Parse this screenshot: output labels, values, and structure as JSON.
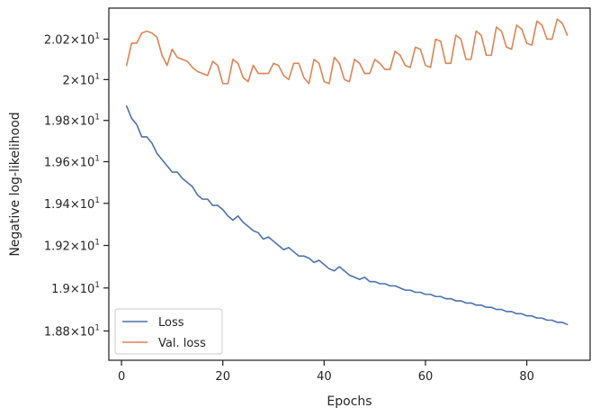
{
  "chart_data": {
    "type": "line",
    "xlabel": "Epochs",
    "ylabel": "Negative log-likelihood",
    "xlim": [
      -2.5,
      92.5
    ],
    "ylim": [
      18.665,
      20.355
    ],
    "yscale": "log",
    "grid": false,
    "legend_position": "lower-left",
    "x_ticks": [
      {
        "value": 0,
        "label": "0"
      },
      {
        "value": 20,
        "label": "20"
      },
      {
        "value": 40,
        "label": "40"
      },
      {
        "value": 60,
        "label": "60"
      },
      {
        "value": 80,
        "label": "80"
      }
    ],
    "y_ticks": [
      {
        "value": 18.8,
        "base": "1.88",
        "exp": "1"
      },
      {
        "value": 19.0,
        "base": "1.9",
        "exp": "1"
      },
      {
        "value": 19.2,
        "base": "1.92",
        "exp": "1"
      },
      {
        "value": 19.4,
        "base": "1.94",
        "exp": "1"
      },
      {
        "value": 19.6,
        "base": "1.96",
        "exp": "1"
      },
      {
        "value": 19.8,
        "base": "1.98",
        "exp": "1"
      },
      {
        "value": 20.0,
        "base": "2",
        "exp": "1"
      },
      {
        "value": 20.2,
        "base": "2.02",
        "exp": "1"
      }
    ],
    "x": [
      1,
      2,
      3,
      4,
      5,
      6,
      7,
      8,
      9,
      10,
      11,
      12,
      13,
      14,
      15,
      16,
      17,
      18,
      19,
      20,
      21,
      22,
      23,
      24,
      25,
      26,
      27,
      28,
      29,
      30,
      31,
      32,
      33,
      34,
      35,
      36,
      37,
      38,
      39,
      40,
      41,
      42,
      43,
      44,
      45,
      46,
      47,
      48,
      49,
      50,
      51,
      52,
      53,
      54,
      55,
      56,
      57,
      58,
      59,
      60,
      61,
      62,
      63,
      64,
      65,
      66,
      67,
      68,
      69,
      70,
      71,
      72,
      73,
      74,
      75,
      76,
      77,
      78,
      79,
      80,
      81,
      82,
      83,
      84,
      85,
      86,
      87,
      88
    ],
    "series": [
      {
        "name": "Loss",
        "color": "#4c72b0",
        "values": [
          19.87,
          19.81,
          19.78,
          19.72,
          19.72,
          19.69,
          19.64,
          19.61,
          19.58,
          19.55,
          19.55,
          19.52,
          19.5,
          19.48,
          19.44,
          19.42,
          19.42,
          19.39,
          19.39,
          19.37,
          19.34,
          19.32,
          19.34,
          19.31,
          19.29,
          19.27,
          19.26,
          19.23,
          19.24,
          19.22,
          19.2,
          19.18,
          19.19,
          19.17,
          19.15,
          19.15,
          19.14,
          19.12,
          19.13,
          19.11,
          19.09,
          19.08,
          19.1,
          19.08,
          19.06,
          19.05,
          19.04,
          19.05,
          19.03,
          19.03,
          19.02,
          19.02,
          19.01,
          19.01,
          19.0,
          18.99,
          18.99,
          18.98,
          18.98,
          18.97,
          18.97,
          18.96,
          18.96,
          18.95,
          18.95,
          18.94,
          18.94,
          18.93,
          18.93,
          18.92,
          18.92,
          18.91,
          18.91,
          18.9,
          18.9,
          18.89,
          18.89,
          18.88,
          18.88,
          18.87,
          18.87,
          18.86,
          18.86,
          18.85,
          18.85,
          18.84,
          18.84,
          18.83
        ]
      },
      {
        "name": "Val. loss",
        "color": "#dd8452",
        "values": [
          20.07,
          20.18,
          20.18,
          20.23,
          20.24,
          20.23,
          20.21,
          20.12,
          20.07,
          20.15,
          20.11,
          20.1,
          20.09,
          20.06,
          20.04,
          20.03,
          20.02,
          20.09,
          20.07,
          19.98,
          19.98,
          20.1,
          20.08,
          20.01,
          19.99,
          20.07,
          20.03,
          20.03,
          20.03,
          20.08,
          20.07,
          20.02,
          20.0,
          20.08,
          20.08,
          20.01,
          19.98,
          20.1,
          20.08,
          19.99,
          19.98,
          20.11,
          20.08,
          20.0,
          19.99,
          20.1,
          20.08,
          20.03,
          20.03,
          20.1,
          20.08,
          20.05,
          20.05,
          20.14,
          20.12,
          20.07,
          20.06,
          20.16,
          20.15,
          20.07,
          20.06,
          20.2,
          20.19,
          20.08,
          20.08,
          20.22,
          20.2,
          20.1,
          20.1,
          20.24,
          20.22,
          20.12,
          20.12,
          20.26,
          20.24,
          20.16,
          20.15,
          20.27,
          20.25,
          20.18,
          20.17,
          20.29,
          20.27,
          20.2,
          20.2,
          20.3,
          20.28,
          20.22
        ]
      }
    ]
  }
}
